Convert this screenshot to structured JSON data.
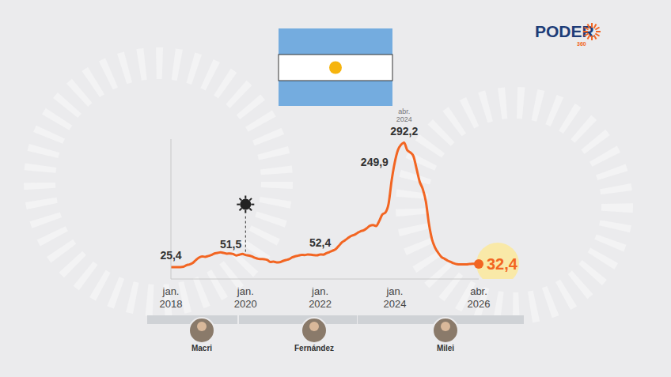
{
  "chart_data": {
    "type": "line",
    "color": "#f26522",
    "brand": "PODER",
    "brand_sub": "360",
    "x": [
      "2018-01",
      "2018-02",
      "2018-03",
      "2018-04",
      "2018-05",
      "2018-06",
      "2018-07",
      "2018-08",
      "2018-09",
      "2018-10",
      "2018-11",
      "2018-12",
      "2019-01",
      "2019-02",
      "2019-03",
      "2019-04",
      "2019-05",
      "2019-06",
      "2019-07",
      "2019-08",
      "2019-09",
      "2019-10",
      "2019-11",
      "2019-12",
      "2020-01",
      "2020-02",
      "2020-03",
      "2020-04",
      "2020-05",
      "2020-06",
      "2020-07",
      "2020-08",
      "2020-09",
      "2020-10",
      "2020-11",
      "2020-12",
      "2021-01",
      "2021-02",
      "2021-03",
      "2021-04",
      "2021-05",
      "2021-06",
      "2021-07",
      "2021-08",
      "2021-09",
      "2021-10",
      "2021-11",
      "2021-12",
      "2022-01",
      "2022-02",
      "2022-03",
      "2022-04",
      "2022-05",
      "2022-06",
      "2022-07",
      "2022-08",
      "2022-09",
      "2022-10",
      "2022-11",
      "2022-12",
      "2023-01",
      "2023-02",
      "2023-03",
      "2023-04",
      "2023-05",
      "2023-06",
      "2023-07",
      "2023-08",
      "2023-09",
      "2023-10",
      "2023-11",
      "2023-12",
      "2024-01",
      "2024-02",
      "2024-03",
      "2024-04",
      "2024-05",
      "2024-06",
      "2024-07",
      "2024-08",
      "2024-09",
      "2024-10",
      "2024-11",
      "2024-12",
      "2025-01",
      "2025-02",
      "2025-03",
      "2025-04",
      "2025-05",
      "2025-06",
      "2025-07",
      "2025-08",
      "2025-09",
      "2025-10",
      "2025-11",
      "2025-12",
      "2026-01",
      "2026-02",
      "2026-03",
      "2026-04"
    ],
    "values": [
      25.4,
      25.4,
      25.4,
      25.5,
      26.3,
      29.5,
      31.2,
      34.4,
      40.5,
      45.9,
      48.5,
      47.6,
      49.3,
      51.3,
      54.7,
      55.8,
      57.3,
      55.8,
      54.4,
      54.5,
      53.5,
      50.5,
      52.1,
      53.8,
      51.5,
      50.3,
      48.4,
      45.6,
      43.4,
      42.8,
      42.4,
      40.7,
      36.6,
      37.2,
      35.8,
      36.1,
      38.5,
      40.7,
      42.6,
      46.3,
      48.8,
      50.2,
      51.8,
      51.4,
      52.5,
      52.1,
      51.2,
      50.9,
      52.4,
      52.3,
      55.1,
      58.0,
      60.7,
      64.0,
      71.0,
      78.5,
      83.0,
      88.0,
      92.4,
      94.8,
      98.8,
      102.5,
      104.3,
      108.8,
      114.2,
      115.6,
      113.4,
      124.4,
      138.3,
      142.7,
      160.9,
      211.4,
      249.9,
      276.2,
      287.9,
      292.2,
      276.4,
      271.5,
      263.4,
      236.7,
      209.0,
      193.0,
      166.0,
      117.8,
      84.5,
      66.9,
      55.9,
      47.3,
      43.5,
      39.4,
      36.6,
      33.6,
      31.8,
      31.3,
      31.4,
      31.5,
      32.0,
      32.5,
      32.6,
      32.4
    ],
    "value_labels": [
      "25,4",
      null,
      null,
      null,
      null,
      null,
      null,
      null,
      null,
      null,
      null,
      null,
      null,
      null,
      null,
      null,
      null,
      null,
      null,
      null,
      null,
      null,
      null,
      null,
      "51,5",
      null,
      null,
      null,
      null,
      null,
      null,
      null,
      null,
      null,
      null,
      null,
      null,
      null,
      null,
      null,
      null,
      null,
      null,
      null,
      null,
      null,
      null,
      null,
      "52,4",
      null,
      null,
      null,
      null,
      null,
      null,
      null,
      null,
      null,
      null,
      null,
      null,
      null,
      null,
      null,
      null,
      null,
      null,
      null,
      null,
      null,
      null,
      null,
      "249,9",
      null,
      null,
      "292,2",
      null,
      null,
      null,
      null,
      null,
      null,
      null,
      null,
      null,
      null,
      null,
      null,
      null,
      null,
      null,
      null,
      null,
      null,
      null,
      null,
      null,
      null,
      null,
      "32,4"
    ],
    "annotations": [
      {
        "x": "2024-04",
        "text": "abr. 2024"
      }
    ],
    "markers": [
      {
        "x": "2020-01",
        "marker": "virus"
      }
    ],
    "xticks": [
      {
        "value": "2018-01",
        "label": "jan. 2018"
      },
      {
        "value": "2020-01",
        "label": "jan. 2020"
      },
      {
        "value": "2022-01",
        "label": "jan. 2022"
      },
      {
        "value": "2024-01",
        "label": "jan. 2024"
      },
      {
        "value": "2026-04",
        "label": "abr. 2026"
      }
    ],
    "ylim": [
      0,
      300
    ],
    "yticks": [],
    "tick_labels": "x",
    "grid": false,
    "presidents": [
      "Macri",
      "Fernández",
      "Milei"
    ]
  }
}
